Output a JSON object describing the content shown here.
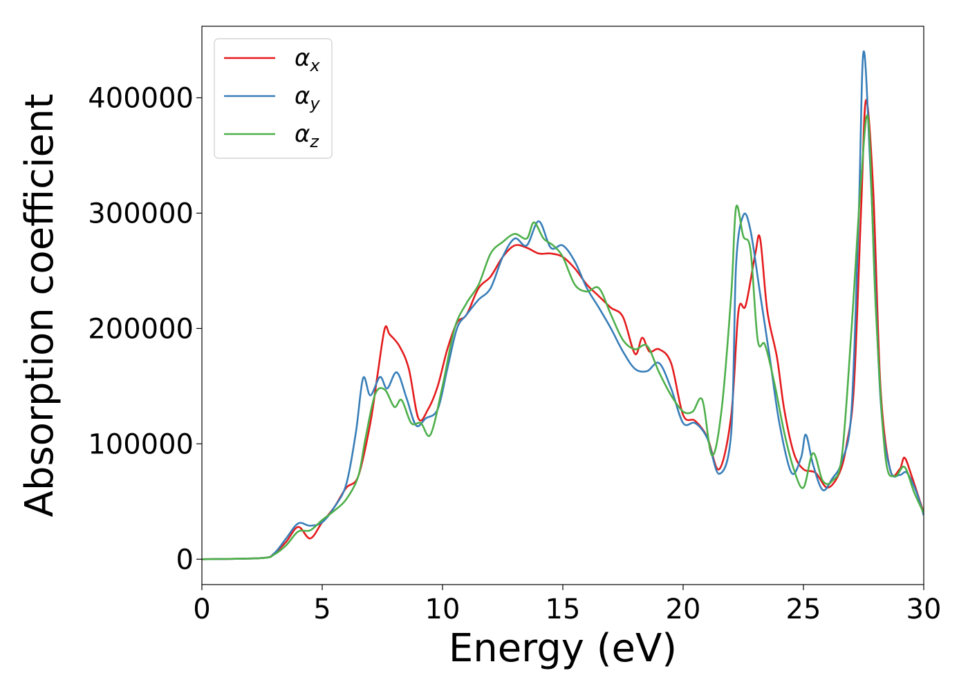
{
  "chart_data": {
    "type": "line",
    "title": "",
    "xlabel": "Energy (eV)",
    "ylabel": "Absorption coefficient",
    "xlim": [
      0,
      30
    ],
    "ylim": [
      -22000,
      462000
    ],
    "xticks": [
      0,
      5,
      10,
      15,
      20,
      25,
      30
    ],
    "xtick_labels": [
      "0",
      "5",
      "10",
      "15",
      "20",
      "25",
      "30"
    ],
    "yticks": [
      0,
      100000,
      200000,
      300000,
      400000
    ],
    "ytick_labels": [
      "0",
      "100000",
      "200000",
      "300000",
      "400000"
    ],
    "grid": false,
    "legend_position": "upper-left",
    "series": [
      {
        "name": "α",
        "subscript": "x",
        "color": "#e41a1c",
        "x": [
          0,
          2.5,
          3.0,
          3.5,
          4.0,
          4.5,
          5.0,
          5.5,
          6.0,
          6.5,
          7.0,
          7.3,
          7.6,
          7.8,
          8.2,
          8.6,
          9.0,
          9.4,
          9.8,
          10.2,
          10.6,
          11.0,
          11.5,
          12.0,
          12.5,
          13.0,
          13.5,
          14.0,
          14.5,
          15.0,
          15.5,
          16.0,
          16.5,
          17.0,
          17.5,
          18.0,
          18.3,
          18.6,
          19.0,
          19.5,
          20.0,
          20.5,
          21.0,
          21.5,
          22.0,
          22.3,
          22.6,
          23.0,
          23.2,
          23.5,
          23.9,
          24.2,
          24.6,
          25.0,
          25.5,
          26.0,
          26.5,
          26.8,
          27.1,
          27.4,
          27.6,
          27.9,
          28.2,
          28.6,
          29.0,
          29.2,
          29.5,
          30.0
        ],
        "y": [
          0,
          1000,
          5000,
          15000,
          28000,
          18000,
          32000,
          45000,
          62000,
          72000,
          118000,
          160000,
          200000,
          195000,
          185000,
          165000,
          122000,
          130000,
          150000,
          182000,
          205000,
          212000,
          235000,
          245000,
          262000,
          272000,
          270000,
          265000,
          265000,
          262000,
          252000,
          238000,
          228000,
          218000,
          210000,
          178000,
          192000,
          180000,
          182000,
          170000,
          125000,
          120000,
          106000,
          78000,
          125000,
          215000,
          220000,
          265000,
          278000,
          215000,
          175000,
          130000,
          92000,
          78000,
          75000,
          62000,
          75000,
          100000,
          150000,
          305000,
          398000,
          320000,
          150000,
          78000,
          78000,
          88000,
          72000,
          40000
        ]
      },
      {
        "name": "α",
        "subscript": "y",
        "color": "#377eb8",
        "x": [
          0,
          2.5,
          3.0,
          3.5,
          4.0,
          4.5,
          5.0,
          5.5,
          6.0,
          6.4,
          6.7,
          7.0,
          7.4,
          7.7,
          8.1,
          8.5,
          8.9,
          9.3,
          9.8,
          10.2,
          10.6,
          11.0,
          11.5,
          12.0,
          12.5,
          13.0,
          13.5,
          14.0,
          14.5,
          15.0,
          15.5,
          16.0,
          16.5,
          17.0,
          17.5,
          18.0,
          18.5,
          19.0,
          19.5,
          20.0,
          20.5,
          21.0,
          21.5,
          22.0,
          22.2,
          22.5,
          22.8,
          23.2,
          23.6,
          24.0,
          24.5,
          24.9,
          25.1,
          25.4,
          25.8,
          26.2,
          26.6,
          27.0,
          27.3,
          27.5,
          27.8,
          28.2,
          28.6,
          29.0,
          29.3,
          29.7,
          30.0
        ],
        "y": [
          0,
          1000,
          5000,
          18000,
          31000,
          29000,
          32000,
          45000,
          65000,
          110000,
          157000,
          142000,
          158000,
          148000,
          162000,
          140000,
          116000,
          122000,
          130000,
          165000,
          200000,
          212000,
          225000,
          235000,
          262000,
          278000,
          272000,
          293000,
          270000,
          272000,
          258000,
          235000,
          218000,
          200000,
          180000,
          165000,
          163000,
          170000,
          148000,
          118000,
          118000,
          105000,
          74000,
          110000,
          255000,
          298000,
          285000,
          230000,
          175000,
          118000,
          75000,
          88000,
          108000,
          82000,
          60000,
          70000,
          85000,
          130000,
          300000,
          440000,
          330000,
          140000,
          78000,
          73000,
          75000,
          58000,
          38000
        ]
      },
      {
        "name": "α",
        "subscript": "z",
        "color": "#4daf4a",
        "x": [
          0,
          2.5,
          3.0,
          3.5,
          4.0,
          4.5,
          5.0,
          5.5,
          6.0,
          6.5,
          6.8,
          7.2,
          7.6,
          8.0,
          8.3,
          8.7,
          9.1,
          9.5,
          10.0,
          10.5,
          11.0,
          11.5,
          12.0,
          12.5,
          13.0,
          13.5,
          13.8,
          14.2,
          14.6,
          15.0,
          15.5,
          16.0,
          16.5,
          17.0,
          17.5,
          18.0,
          18.5,
          19.0,
          19.5,
          20.0,
          20.4,
          20.8,
          21.2,
          21.6,
          22.0,
          22.2,
          22.5,
          22.8,
          23.1,
          23.4,
          23.8,
          24.2,
          24.6,
          25.0,
          25.4,
          25.8,
          26.2,
          26.6,
          27.0,
          27.4,
          27.7,
          28.0,
          28.4,
          28.8,
          29.2,
          29.6,
          30.0
        ],
        "y": [
          0,
          1000,
          4000,
          12000,
          24000,
          25000,
          34000,
          42000,
          52000,
          72000,
          105000,
          143000,
          147000,
          132000,
          138000,
          118000,
          118000,
          108000,
          150000,
          200000,
          222000,
          238000,
          265000,
          275000,
          282000,
          278000,
          292000,
          278000,
          272000,
          262000,
          238000,
          232000,
          235000,
          212000,
          190000,
          182000,
          185000,
          162000,
          142000,
          128000,
          128000,
          138000,
          90000,
          130000,
          230000,
          305000,
          280000,
          268000,
          190000,
          186000,
          152000,
          110000,
          78000,
          62000,
          92000,
          68000,
          68000,
          90000,
          200000,
          330000,
          380000,
          220000,
          90000,
          72000,
          80000,
          58000,
          40000
        ]
      }
    ]
  }
}
